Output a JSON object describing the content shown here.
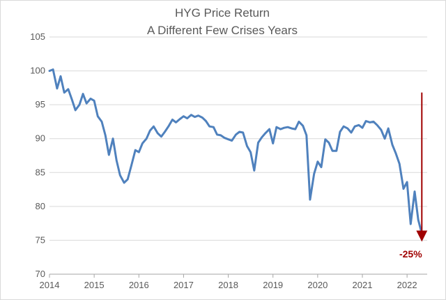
{
  "chart_data": {
    "type": "line",
    "title": "HYG Price Return",
    "subtitle": "A Different Few Crises Years",
    "xlabel": "",
    "ylabel": "",
    "xlim": [
      2014,
      2022.45
    ],
    "ylim": [
      70,
      105
    ],
    "x_ticks": [
      2014,
      2015,
      2016,
      2017,
      2018,
      2019,
      2020,
      2021,
      2022
    ],
    "x_tick_labels": [
      "2014",
      "2015",
      "2016",
      "2017",
      "2018",
      "2019",
      "2020",
      "2021",
      "2022"
    ],
    "y_ticks": [
      70,
      75,
      80,
      85,
      90,
      95,
      100,
      105
    ],
    "y_tick_labels": [
      "70",
      "75",
      "80",
      "85",
      "90",
      "95",
      "100",
      "105"
    ],
    "grid": "horizontal",
    "series": [
      {
        "color": "#4f81bd",
        "x": [
          2014.0,
          2014.08,
          2014.17,
          2014.25,
          2014.33,
          2014.42,
          2014.5,
          2014.58,
          2014.67,
          2014.75,
          2014.83,
          2014.92,
          2015.0,
          2015.08,
          2015.17,
          2015.25,
          2015.33,
          2015.42,
          2015.5,
          2015.58,
          2015.67,
          2015.75,
          2015.83,
          2015.92,
          2016.0,
          2016.08,
          2016.17,
          2016.25,
          2016.33,
          2016.42,
          2016.5,
          2016.58,
          2016.67,
          2016.75,
          2016.83,
          2016.92,
          2017.0,
          2017.08,
          2017.17,
          2017.25,
          2017.33,
          2017.42,
          2017.5,
          2017.58,
          2017.67,
          2017.75,
          2017.83,
          2017.92,
          2018.0,
          2018.08,
          2018.17,
          2018.25,
          2018.33,
          2018.42,
          2018.5,
          2018.58,
          2018.67,
          2018.75,
          2018.83,
          2018.92,
          2019.0,
          2019.08,
          2019.17,
          2019.25,
          2019.33,
          2019.42,
          2019.5,
          2019.58,
          2019.67,
          2019.75,
          2019.83,
          2019.92,
          2020.0,
          2020.08,
          2020.17,
          2020.25,
          2020.33,
          2020.42,
          2020.5,
          2020.58,
          2020.67,
          2020.75,
          2020.83,
          2020.92,
          2021.0,
          2021.08,
          2021.17,
          2021.25,
          2021.33,
          2021.42,
          2021.5,
          2021.58,
          2021.67,
          2021.75,
          2021.83,
          2021.92,
          2022.0,
          2022.08,
          2022.17,
          2022.25,
          2022.33
        ],
        "y": [
          100.0,
          100.2,
          97.4,
          99.2,
          96.8,
          97.3,
          95.8,
          94.2,
          95.0,
          96.6,
          95.2,
          95.9,
          95.6,
          93.3,
          92.5,
          90.5,
          87.6,
          90.0,
          86.8,
          84.6,
          83.5,
          84.0,
          86.0,
          88.3,
          88.0,
          89.3,
          90.0,
          91.2,
          91.8,
          90.8,
          90.3,
          91.0,
          91.9,
          92.8,
          92.4,
          92.9,
          93.3,
          93.0,
          93.5,
          93.2,
          93.4,
          93.1,
          92.6,
          91.8,
          91.7,
          90.6,
          90.5,
          90.1,
          89.9,
          89.7,
          90.6,
          91.0,
          90.9,
          88.9,
          88.0,
          85.3,
          89.4,
          90.2,
          90.8,
          91.4,
          89.3,
          91.7,
          91.4,
          91.6,
          91.7,
          91.5,
          91.4,
          92.5,
          91.9,
          90.5,
          81.0,
          84.8,
          86.6,
          85.8,
          89.9,
          89.4,
          88.2,
          88.2,
          91.0,
          91.8,
          91.5,
          90.9,
          91.8,
          92.0,
          91.6,
          92.6,
          92.4,
          92.5,
          92.0,
          91.3,
          90.0,
          91.5,
          89.1,
          87.8,
          86.3,
          82.6,
          83.6,
          77.4,
          82.2,
          78.0,
          76.0
        ]
      }
    ],
    "annotations": [
      {
        "type": "arrow",
        "color": "#a00000",
        "x": 2022.33,
        "y_start": 96.8,
        "y_end": 75.0
      },
      {
        "type": "label",
        "text": "-25%",
        "color": "#a00000",
        "x": 2022.33,
        "y": 73.0
      }
    ]
  }
}
